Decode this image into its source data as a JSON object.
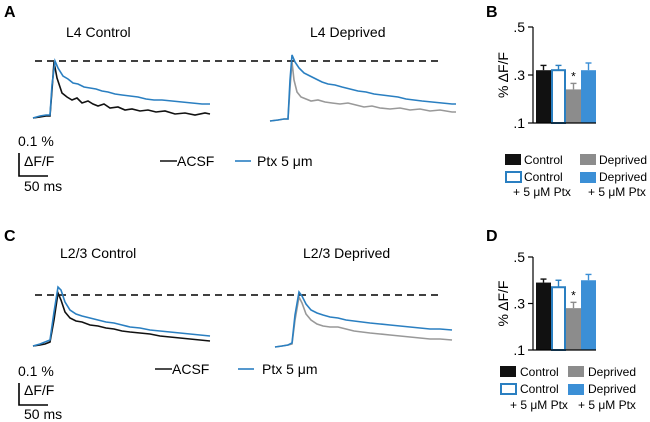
{
  "panels": {
    "A": "A",
    "B": "B",
    "C": "C",
    "D": "D"
  },
  "traces": {
    "top": {
      "left_title": "L4 Control",
      "right_title": "L4 Deprived"
    },
    "bottom": {
      "left_title": "L2/3 Control",
      "right_title": "L2/3 Deprived"
    },
    "legend": {
      "acsf": "ACSF",
      "ptx": "Ptx 5 μm"
    },
    "scalebar": {
      "amp": "0.1 %",
      "unit": "ΔF/F",
      "time": "50 ms"
    },
    "colors": {
      "acsf_control": "#111111",
      "acsf_deprived": "#999999",
      "ptx": "#2a7fc1",
      "dashed": "#000000"
    }
  },
  "bar_legend": {
    "control": "Control",
    "deprived": "Deprived",
    "control_ptx_1": "Control",
    "control_ptx_2": "+ 5 μM Ptx",
    "deprived_ptx_1": "Deprived",
    "deprived_ptx_2": "+ 5 μM Ptx"
  },
  "chart_data": [
    {
      "panel": "B",
      "type": "bar",
      "ylabel": "% ΔF/F",
      "ylim": [
        0.1,
        0.5
      ],
      "yticks": [
        0.1,
        0.3,
        0.5
      ],
      "ytick_labels": [
        ".1",
        ".3",
        ".5"
      ],
      "categories": [
        "Control",
        "Control + 5 μM Ptx",
        "Deprived",
        "Deprived + 5 μM Ptx"
      ],
      "values": [
        0.32,
        0.32,
        0.24,
        0.32
      ],
      "errors": [
        0.02,
        0.02,
        0.025,
        0.03
      ],
      "colors": [
        "#111111",
        "#ffffff",
        "#8c8c8c",
        "#3b8fd6"
      ],
      "outline": [
        "#111111",
        "#2a7fc1",
        "#8c8c8c",
        "#3b8fd6"
      ],
      "significance": [
        "",
        "",
        "*",
        ""
      ]
    },
    {
      "panel": "D",
      "type": "bar",
      "ylabel": "% ΔF/F",
      "ylim": [
        0.1,
        0.5
      ],
      "yticks": [
        0.1,
        0.3,
        0.5
      ],
      "ytick_labels": [
        ".1",
        ".3",
        ".5"
      ],
      "categories": [
        "Control",
        "Control + 5 μM Ptx",
        "Deprived",
        "Deprived + 5 μM Ptx"
      ],
      "values": [
        0.39,
        0.37,
        0.28,
        0.4
      ],
      "errors": [
        0.015,
        0.03,
        0.025,
        0.025
      ],
      "colors": [
        "#111111",
        "#ffffff",
        "#8c8c8c",
        "#3b8fd6"
      ],
      "outline": [
        "#111111",
        "#2a7fc1",
        "#8c8c8c",
        "#3b8fd6"
      ],
      "significance": [
        "",
        "",
        "*",
        ""
      ]
    }
  ]
}
